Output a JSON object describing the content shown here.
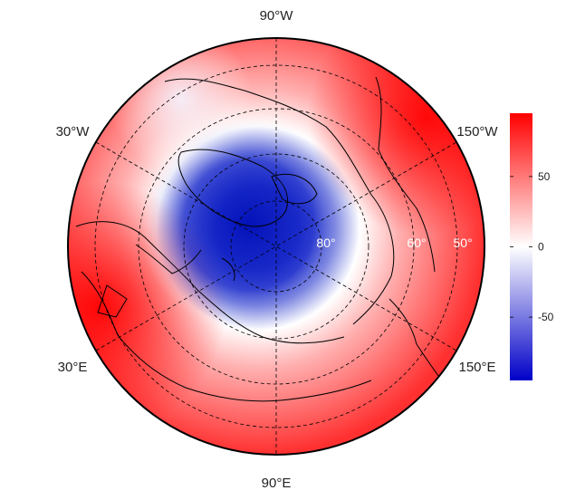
{
  "map": {
    "projection": "north-polar-stereographic",
    "longitude_labels": [
      {
        "key": "90W",
        "text": "90°W"
      },
      {
        "key": "30W",
        "text": "30°W"
      },
      {
        "key": "150W",
        "text": "150°W"
      },
      {
        "key": "30E",
        "text": "30°E"
      },
      {
        "key": "150E",
        "text": "150°E"
      },
      {
        "key": "90E",
        "text": "90°E"
      }
    ],
    "latitude_labels": [
      {
        "key": "80",
        "text": "80°"
      },
      {
        "key": "60",
        "text": "60°"
      },
      {
        "key": "50",
        "text": "50°"
      }
    ],
    "graticule": "dashed",
    "field_pattern": "strong negative anomaly centered over the pole and Greenland/Canadian Arctic, positive anomalies over Eurasia mid-latitudes and the North Pacific"
  },
  "colorbar": {
    "ticks": [
      {
        "value": 50,
        "label": "50"
      },
      {
        "value": 0,
        "label": "0"
      },
      {
        "value": -50,
        "label": "-50"
      }
    ],
    "range": [
      -95,
      95
    ],
    "colors": {
      "high": "#ff0000",
      "mid": "#ffffff",
      "low": "#0000c8"
    }
  }
}
